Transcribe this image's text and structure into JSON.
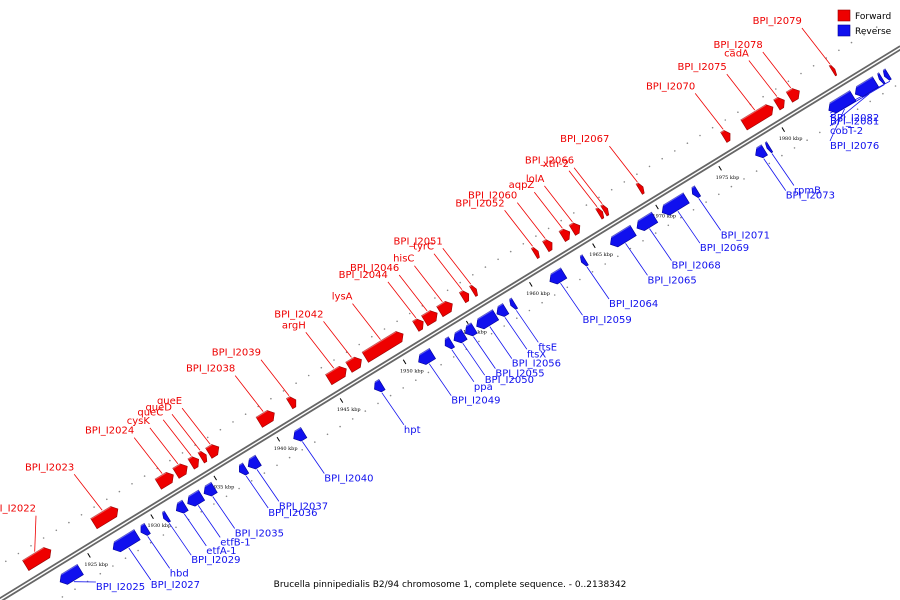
{
  "colors": {
    "forward": "#ee0000",
    "reverse": "#1010ee",
    "backbone": "#666666"
  },
  "legend": {
    "forward_label": "Forward",
    "reverse_label": "Reverse"
  },
  "caption": "Brucella pinnipedialis B2/94 chromosome 1, complete sequence. - 0..2138342",
  "ticks": [
    "1925 kbp",
    "1930 kbp",
    "1935 kbp",
    "1940 kbp",
    "1945 kbp",
    "1950 kbp",
    "1955 kbp",
    "1960 kbp",
    "1965 kbp",
    "1970 kbp",
    "1975 kbp",
    "1980 kbp"
  ],
  "forward_genes": [
    {
      "name": "BPI_I2022",
      "start_kbp": 1921.0,
      "end_kbp": 1923.0
    },
    {
      "name": "BPI_I2023",
      "start_kbp": 1926.4,
      "end_kbp": 1928.3
    },
    {
      "name": "BPI_I2024",
      "start_kbp": 1931.5,
      "end_kbp": 1932.7
    },
    {
      "name": "cysK",
      "start_kbp": 1932.9,
      "end_kbp": 1933.8
    },
    {
      "name": "queC",
      "start_kbp": 1934.1,
      "end_kbp": 1934.7
    },
    {
      "name": "queD",
      "start_kbp": 1934.9,
      "end_kbp": 1935.3
    },
    {
      "name": "queE",
      "start_kbp": 1935.5,
      "end_kbp": 1936.3
    },
    {
      "name": "BPI_I2038",
      "start_kbp": 1939.5,
      "end_kbp": 1940.7
    },
    {
      "name": "BPI_I2039",
      "start_kbp": 1941.9,
      "end_kbp": 1942.4
    },
    {
      "name": "argH",
      "start_kbp": 1945.0,
      "end_kbp": 1946.4
    },
    {
      "name": "BPI_I2042",
      "start_kbp": 1946.6,
      "end_kbp": 1947.6
    },
    {
      "name": "lysA",
      "start_kbp": 1947.9,
      "end_kbp": 1950.9
    },
    {
      "name": "BPI_I2044",
      "start_kbp": 1951.9,
      "end_kbp": 1952.5
    },
    {
      "name": "BPI_I2046",
      "start_kbp": 1952.6,
      "end_kbp": 1953.6
    },
    {
      "name": "hisC",
      "start_kbp": 1953.8,
      "end_kbp": 1954.8
    },
    {
      "name": "tyrC",
      "start_kbp": 1955.6,
      "end_kbp": 1956.1
    },
    {
      "name": "BPI_I2051",
      "start_kbp": 1956.4,
      "end_kbp": 1956.7
    },
    {
      "name": "BPI_I2052",
      "start_kbp": 1961.3,
      "end_kbp": 1961.6
    },
    {
      "name": "BPI_I2060",
      "start_kbp": 1962.2,
      "end_kbp": 1962.7
    },
    {
      "name": "aqpZ",
      "start_kbp": 1963.5,
      "end_kbp": 1964.1
    },
    {
      "name": "lolA",
      "start_kbp": 1964.3,
      "end_kbp": 1964.9
    },
    {
      "name": "xth-2",
      "start_kbp": 1966.4,
      "end_kbp": 1966.7
    },
    {
      "name": "BPI_I2066",
      "start_kbp": 1966.8,
      "end_kbp": 1967.1
    },
    {
      "name": "BPI_I2067",
      "start_kbp": 1969.6,
      "end_kbp": 1969.9
    },
    {
      "name": "BPI_I2070",
      "start_kbp": 1976.3,
      "end_kbp": 1976.8
    },
    {
      "name": "BPI_I2075",
      "start_kbp": 1977.9,
      "end_kbp": 1980.2
    },
    {
      "name": "cadA",
      "start_kbp": 1980.5,
      "end_kbp": 1981.1
    },
    {
      "name": "BPI_I2078",
      "start_kbp": 1981.5,
      "end_kbp": 1982.3
    },
    {
      "name": "BPI_I2079",
      "start_kbp": 1984.9,
      "end_kbp": 1985.1
    }
  ],
  "reverse_genes": [
    {
      "name": "BPI_I2025",
      "start_kbp": 1922.4,
      "end_kbp": 1924.0
    },
    {
      "name": "BPI_I2027",
      "start_kbp": 1926.6,
      "end_kbp": 1928.5
    },
    {
      "name": "hbd",
      "start_kbp": 1928.8,
      "end_kbp": 1929.3
    },
    {
      "name": "BPI_I2029",
      "start_kbp": 1930.6,
      "end_kbp": 1930.9
    },
    {
      "name": "etfA-1",
      "start_kbp": 1931.6,
      "end_kbp": 1932.3
    },
    {
      "name": "etfB-1",
      "start_kbp": 1932.5,
      "end_kbp": 1933.6
    },
    {
      "name": "BPI_I2035",
      "start_kbp": 1933.8,
      "end_kbp": 1934.6
    },
    {
      "name": "BPI_I2036",
      "start_kbp": 1936.6,
      "end_kbp": 1937.1
    },
    {
      "name": "BPI_I2037",
      "start_kbp": 1937.3,
      "end_kbp": 1938.1
    },
    {
      "name": "BPI_I2040",
      "start_kbp": 1940.9,
      "end_kbp": 1941.7
    },
    {
      "name": "hpt",
      "start_kbp": 1947.3,
      "end_kbp": 1947.9
    },
    {
      "name": "BPI_I2049",
      "start_kbp": 1950.8,
      "end_kbp": 1951.9
    },
    {
      "name": "ppa",
      "start_kbp": 1952.9,
      "end_kbp": 1953.4
    },
    {
      "name": "BPI_I2050",
      "start_kbp": 1953.6,
      "end_kbp": 1954.4
    },
    {
      "name": "BPI_I2055",
      "start_kbp": 1954.5,
      "end_kbp": 1955.2
    },
    {
      "name": "BPI_I2056",
      "start_kbp": 1955.4,
      "end_kbp": 1956.9
    },
    {
      "name": "ftsX",
      "start_kbp": 1957.0,
      "end_kbp": 1957.7
    },
    {
      "name": "ftsE",
      "start_kbp": 1958.1,
      "end_kbp": 1958.4
    },
    {
      "name": "BPI_I2059",
      "start_kbp": 1961.2,
      "end_kbp": 1962.3
    },
    {
      "name": "BPI_I2064",
      "start_kbp": 1963.7,
      "end_kbp": 1964.0
    },
    {
      "name": "BPI_I2065",
      "start_kbp": 1966.0,
      "end_kbp": 1967.8
    },
    {
      "name": "BPI_I2068",
      "start_kbp": 1968.1,
      "end_kbp": 1969.5
    },
    {
      "name": "BPI_I2069",
      "start_kbp": 1970.1,
      "end_kbp": 1972.0
    },
    {
      "name": "BPI_I2071",
      "start_kbp": 1972.5,
      "end_kbp": 1972.9
    },
    {
      "name": "BPI_I2073",
      "start_kbp": 1977.5,
      "end_kbp": 1978.2
    },
    {
      "name": "rpmB",
      "start_kbp": 1978.4,
      "end_kbp": 1978.6
    },
    {
      "name": "BPI_I2076",
      "start_kbp": 1983.3,
      "end_kbp": 1985.2
    },
    {
      "name": "cobT-2",
      "start_kbp": 1985.4,
      "end_kbp": 1987.0
    },
    {
      "name": "BPI_I2081",
      "start_kbp": 1987.3,
      "end_kbp": 1987.5
    },
    {
      "name": "BPI_I2082",
      "start_kbp": 1987.7,
      "end_kbp": 1988.0
    }
  ]
}
